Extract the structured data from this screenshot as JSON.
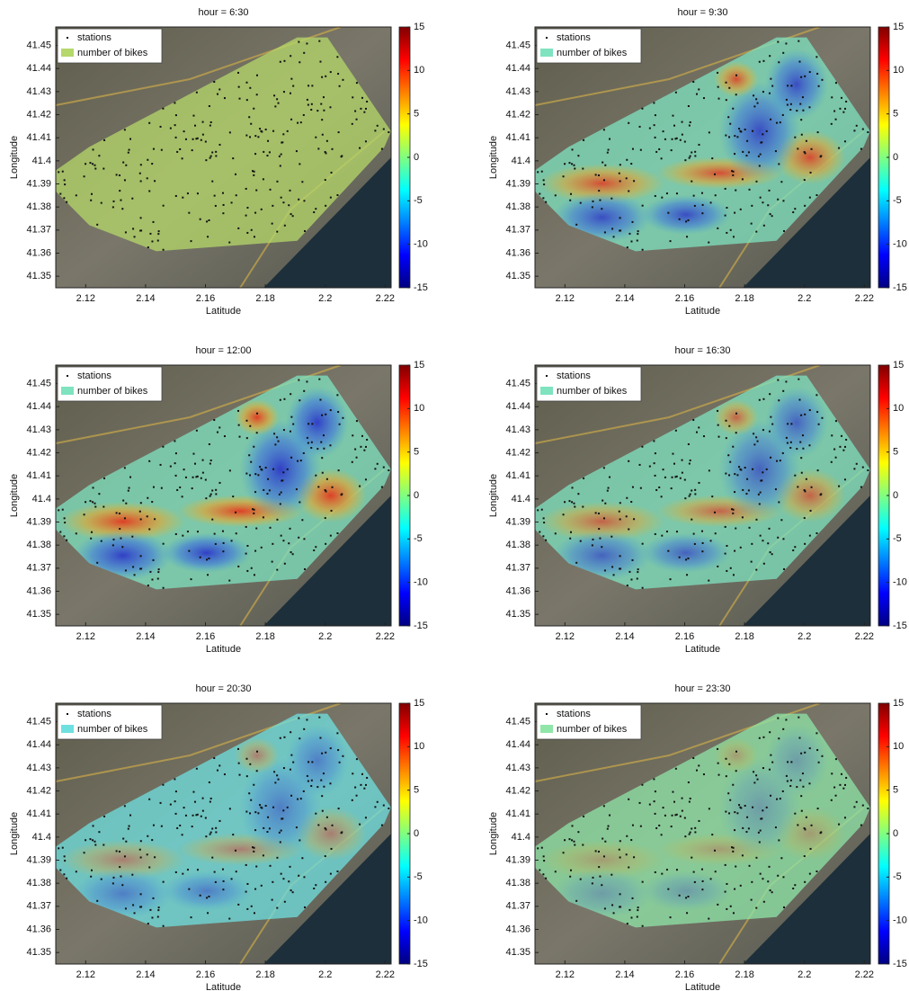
{
  "chart_data": [
    {
      "type": "heatmap",
      "title": "hour = 6:30",
      "xlabel": "Latitude",
      "ylabel": "Longitude",
      "xlim": [
        2.11,
        2.222
      ],
      "ylim": [
        41.345,
        41.458
      ],
      "xticks": [
        2.12,
        2.14,
        2.16,
        2.18,
        2.2,
        2.22
      ],
      "yticks": [
        41.35,
        41.36,
        41.37,
        41.38,
        41.39,
        41.4,
        41.41,
        41.42,
        41.43,
        41.44,
        41.45
      ],
      "clim": [
        -15,
        15
      ],
      "cticks": [
        15,
        10,
        5,
        0,
        -5,
        -10,
        -15
      ],
      "legend": [
        "stations",
        "number of bikes"
      ],
      "color": "#b5d86a"
    },
    {
      "type": "heatmap",
      "title": "hour = 9:30",
      "xlabel": "Latitude",
      "ylabel": "Longitude",
      "xlim": [
        2.11,
        2.222
      ],
      "ylim": [
        41.345,
        41.458
      ],
      "xticks": [
        2.12,
        2.14,
        2.16,
        2.18,
        2.2,
        2.22
      ],
      "yticks": [
        41.35,
        41.36,
        41.37,
        41.38,
        41.39,
        41.4,
        41.41,
        41.42,
        41.43,
        41.44,
        41.45
      ],
      "clim": [
        -15,
        15
      ],
      "cticks": [
        15,
        10,
        5,
        0,
        -5,
        -10,
        -15
      ],
      "legend": [
        "stations",
        "number of bikes"
      ],
      "color": "#7fe3c0"
    },
    {
      "type": "heatmap",
      "title": "hour = 12:00",
      "xlabel": "Latitude",
      "ylabel": "Longitude",
      "xlim": [
        2.11,
        2.222
      ],
      "ylim": [
        41.345,
        41.458
      ],
      "xticks": [
        2.12,
        2.14,
        2.16,
        2.18,
        2.2,
        2.22
      ],
      "yticks": [
        41.35,
        41.36,
        41.37,
        41.38,
        41.39,
        41.4,
        41.41,
        41.42,
        41.43,
        41.44,
        41.45
      ],
      "clim": [
        -15,
        15
      ],
      "cticks": [
        15,
        10,
        5,
        0,
        -5,
        -10,
        -15
      ],
      "legend": [
        "stations",
        "number of bikes"
      ],
      "color": "#7fe3c0"
    },
    {
      "type": "heatmap",
      "title": "hour = 16:30",
      "xlabel": "Latitude",
      "ylabel": "Longitude",
      "xlim": [
        2.11,
        2.222
      ],
      "ylim": [
        41.345,
        41.458
      ],
      "xticks": [
        2.12,
        2.14,
        2.16,
        2.18,
        2.2,
        2.22
      ],
      "yticks": [
        41.35,
        41.36,
        41.37,
        41.38,
        41.39,
        41.4,
        41.41,
        41.42,
        41.43,
        41.44,
        41.45
      ],
      "clim": [
        -15,
        15
      ],
      "cticks": [
        15,
        10,
        5,
        0,
        -5,
        -10,
        -15
      ],
      "legend": [
        "stations",
        "number of bikes"
      ],
      "color": "#7fe3c0"
    },
    {
      "type": "heatmap",
      "title": "hour = 20:30",
      "xlabel": "Latitude",
      "ylabel": "Longitude",
      "xlim": [
        2.11,
        2.222
      ],
      "ylim": [
        41.345,
        41.458
      ],
      "xticks": [
        2.12,
        2.14,
        2.16,
        2.18,
        2.2,
        2.22
      ],
      "yticks": [
        41.35,
        41.36,
        41.37,
        41.38,
        41.39,
        41.4,
        41.41,
        41.42,
        41.43,
        41.44,
        41.45
      ],
      "clim": [
        -15,
        15
      ],
      "cticks": [
        15,
        10,
        5,
        0,
        -5,
        -10,
        -15
      ],
      "legend": [
        "stations",
        "number of bikes"
      ],
      "color": "#6fe0e0"
    },
    {
      "type": "heatmap",
      "title": "hour = 23:30",
      "xlabel": "Latitude",
      "ylabel": "Longitude",
      "xlim": [
        2.11,
        2.222
      ],
      "ylim": [
        41.345,
        41.458
      ],
      "xticks": [
        2.12,
        2.14,
        2.16,
        2.18,
        2.2,
        2.22
      ],
      "yticks": [
        41.35,
        41.36,
        41.37,
        41.38,
        41.39,
        41.4,
        41.41,
        41.42,
        41.43,
        41.44,
        41.45
      ],
      "clim": [
        -15,
        15
      ],
      "cticks": [
        15,
        10,
        5,
        0,
        -5,
        -10,
        -15
      ],
      "legend": [
        "stations",
        "number of bikes"
      ],
      "color": "#8fe6a8"
    }
  ]
}
